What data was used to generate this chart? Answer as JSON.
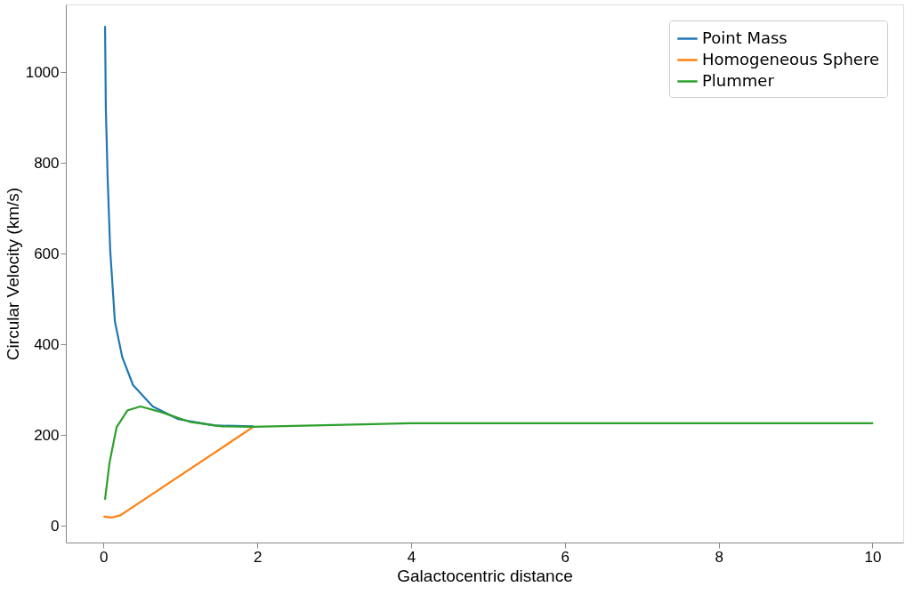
{
  "chart_data": {
    "type": "line",
    "xlabel": "Galactocentric distance",
    "ylabel": "Circular Velocity (km/s)",
    "xlim": [
      -0.49,
      10.4
    ],
    "ylim": [
      -37,
      1149
    ],
    "xticks": [
      0,
      2,
      4,
      6,
      8,
      10
    ],
    "yticks": [
      0,
      200,
      400,
      600,
      800,
      1000
    ],
    "grid": false,
    "legend": "top right",
    "line_style": "solid",
    "series": [
      {
        "name": "Point Mass",
        "color": "#1f77b4",
        "x": [
          0.02,
          0.03,
          0.054,
          0.087,
          0.148,
          0.243,
          0.384,
          0.64,
          0.97,
          1.44,
          1.94
        ],
        "values": [
          1100,
          920,
          764,
          607,
          450,
          372,
          310,
          263,
          235,
          221,
          219
        ]
      },
      {
        "name": "Homogeneous Sphere",
        "color": "#ff7f0e",
        "x": [
          0.01,
          0.1,
          0.22,
          1.94
        ],
        "values": [
          20,
          18,
          23,
          217
        ]
      },
      {
        "name": "Plummer",
        "color": "#2ca02c",
        "x": [
          0.02,
          0.078,
          0.17,
          0.31,
          0.48,
          0.74,
          1.12,
          1.54,
          1.94,
          3,
          4,
          6,
          8,
          10
        ],
        "values": [
          59,
          139,
          217,
          254,
          263,
          251,
          229,
          219,
          218,
          222,
          226,
          226,
          226,
          226
        ]
      }
    ]
  }
}
